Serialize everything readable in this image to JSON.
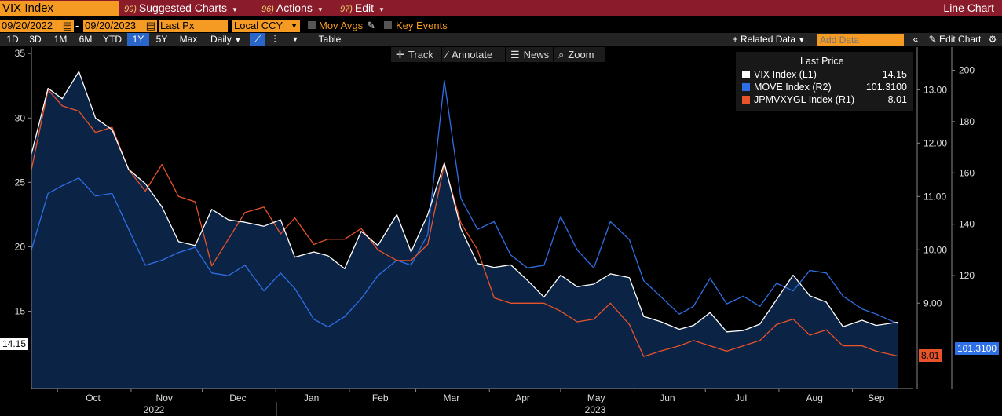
{
  "header": {
    "ticker": "VIX Index",
    "menus": [
      {
        "num": "99)",
        "label": "Suggested Charts"
      },
      {
        "num": "96)",
        "label": "Actions"
      },
      {
        "num": "97)",
        "label": "Edit"
      }
    ],
    "chart_type_label": "Line Chart"
  },
  "controls": {
    "start_date": "09/20/2022",
    "end_date": "09/20/2023",
    "field": "Last Px",
    "currency": "Local CCY",
    "mov_avgs": "Mov Avgs",
    "key_events": "Key Events",
    "date_separator": "-"
  },
  "range_buttons": [
    "1D",
    "3D",
    "1M",
    "6M",
    "YTD",
    "1Y",
    "5Y",
    "Max"
  ],
  "selected_range": "1Y",
  "periodicity": "Daily",
  "table_label": "Table",
  "related_data_label": "Related Data",
  "add_data_placeholder": "Add Data",
  "edit_chart_label": "Edit Chart",
  "tools": [
    "Track",
    "Annotate",
    "News",
    "Zoom"
  ],
  "legend": {
    "header": "Last Price",
    "items": [
      {
        "name": "VIX Index  (L1)",
        "value": "14.15",
        "color": "#ffffff"
      },
      {
        "name": "MOVE Index  (R2)",
        "value": "101.3100",
        "color": "#2e6fe6"
      },
      {
        "name": "JPMVXYGL Index  (R1)",
        "value": "8.01",
        "color": "#e8532a"
      }
    ]
  },
  "last_value_tags": {
    "left": "14.15",
    "move": "101.3100",
    "jpm": "8.01"
  },
  "chart_data": {
    "type": "line",
    "title": "",
    "x_axis": {
      "months": [
        "Oct",
        "Nov",
        "Dec",
        "Jan",
        "Feb",
        "Mar",
        "Apr",
        "May",
        "Jun",
        "Jul",
        "Aug",
        "Sep"
      ],
      "years": [
        "2022",
        "2023"
      ]
    },
    "y_axis_left": {
      "range": [
        9,
        35.5
      ],
      "ticks": [
        "15",
        "20",
        "25",
        "30",
        "35"
      ]
    },
    "y_axis_r1": {
      "range": [
        7.4,
        13.8
      ],
      "ticks": [
        "9.00",
        "10.00",
        "11.00",
        "12.00",
        "13.00"
      ]
    },
    "y_axis_r2": {
      "range": [
        76,
        209
      ],
      "ticks": [
        "120",
        "140",
        "160",
        "180",
        "200"
      ]
    },
    "series": [
      {
        "name": "VIX Index  (L1)",
        "axis": "left",
        "color": "#ffffff",
        "fill": "#0b2345",
        "x": [
          "2022-09-20",
          "2022-09-27",
          "2022-10-03",
          "2022-10-10",
          "2022-10-17",
          "2022-10-24",
          "2022-10-31",
          "2022-11-07",
          "2022-11-14",
          "2022-11-21",
          "2022-11-28",
          "2022-12-05",
          "2022-12-12",
          "2022-12-19",
          "2022-12-27",
          "2023-01-03",
          "2023-01-09",
          "2023-01-17",
          "2023-01-23",
          "2023-01-30",
          "2023-02-06",
          "2023-02-13",
          "2023-02-21",
          "2023-02-27",
          "2023-03-06",
          "2023-03-13",
          "2023-03-20",
          "2023-03-27",
          "2023-04-03",
          "2023-04-10",
          "2023-04-17",
          "2023-04-24",
          "2023-05-01",
          "2023-05-08",
          "2023-05-15",
          "2023-05-22",
          "2023-05-30",
          "2023-06-05",
          "2023-06-12",
          "2023-06-20",
          "2023-06-26",
          "2023-07-03",
          "2023-07-10",
          "2023-07-17",
          "2023-07-24",
          "2023-07-31",
          "2023-08-07",
          "2023-08-14",
          "2023-08-21",
          "2023-08-28",
          "2023-09-05",
          "2023-09-11",
          "2023-09-20"
        ],
        "values": [
          27.2,
          32.3,
          31.5,
          33.6,
          30.0,
          29.1,
          26.0,
          24.9,
          23.1,
          20.4,
          20.1,
          22.9,
          22.1,
          21.9,
          21.6,
          22.1,
          19.2,
          19.6,
          19.3,
          18.3,
          21.2,
          20.1,
          22.5,
          19.6,
          22.5,
          26.5,
          21.4,
          18.7,
          18.4,
          18.6,
          17.4,
          16.1,
          17.8,
          16.9,
          17.1,
          17.9,
          17.6,
          14.6,
          14.2,
          13.6,
          13.9,
          14.9,
          13.4,
          13.5,
          14.0,
          15.9,
          17.8,
          16.2,
          15.7,
          13.8,
          14.3,
          13.9,
          14.15
        ]
      },
      {
        "name": "MOVE Index  (R2)",
        "axis": "right2",
        "color": "#2e6fe6",
        "x": [
          "2022-09-20",
          "2022-09-27",
          "2022-10-03",
          "2022-10-10",
          "2022-10-17",
          "2022-10-24",
          "2022-10-31",
          "2022-11-07",
          "2022-11-14",
          "2022-11-21",
          "2022-11-28",
          "2022-12-05",
          "2022-12-12",
          "2022-12-19",
          "2022-12-27",
          "2023-01-03",
          "2023-01-09",
          "2023-01-17",
          "2023-01-23",
          "2023-01-30",
          "2023-02-06",
          "2023-02-13",
          "2023-02-21",
          "2023-02-27",
          "2023-03-06",
          "2023-03-13",
          "2023-03-20",
          "2023-03-27",
          "2023-04-03",
          "2023-04-10",
          "2023-04-17",
          "2023-04-24",
          "2023-05-01",
          "2023-05-08",
          "2023-05-15",
          "2023-05-22",
          "2023-05-30",
          "2023-06-05",
          "2023-06-12",
          "2023-06-20",
          "2023-06-26",
          "2023-07-03",
          "2023-07-10",
          "2023-07-17",
          "2023-07-24",
          "2023-07-31",
          "2023-08-07",
          "2023-08-14",
          "2023-08-21",
          "2023-08-28",
          "2023-09-05",
          "2023-09-11",
          "2023-09-20"
        ],
        "values": [
          130,
          152,
          155,
          158,
          151,
          152,
          138,
          124,
          126,
          129,
          131,
          121,
          120,
          124,
          114,
          121,
          115,
          103,
          100,
          104,
          111,
          120,
          126,
          124,
          136,
          196,
          150,
          138,
          141,
          128,
          123,
          124,
          143,
          130,
          123,
          141,
          134,
          118,
          112,
          105,
          108,
          119,
          109,
          112,
          108,
          117,
          114,
          122,
          121,
          112,
          107,
          105,
          101.31
        ]
      },
      {
        "name": "JPMVXYGL Index  (R1)",
        "axis": "right1",
        "color": "#e8532a",
        "x": [
          "2022-09-20",
          "2022-09-27",
          "2022-10-03",
          "2022-10-10",
          "2022-10-17",
          "2022-10-24",
          "2022-10-31",
          "2022-11-07",
          "2022-11-14",
          "2022-11-21",
          "2022-11-28",
          "2022-12-05",
          "2022-12-12",
          "2022-12-19",
          "2022-12-27",
          "2023-01-03",
          "2023-01-09",
          "2023-01-17",
          "2023-01-23",
          "2023-01-30",
          "2023-02-06",
          "2023-02-13",
          "2023-02-21",
          "2023-02-27",
          "2023-03-06",
          "2023-03-13",
          "2023-03-20",
          "2023-03-27",
          "2023-04-03",
          "2023-04-10",
          "2023-04-17",
          "2023-04-24",
          "2023-05-01",
          "2023-05-08",
          "2023-05-15",
          "2023-05-22",
          "2023-05-30",
          "2023-06-05",
          "2023-06-12",
          "2023-06-20",
          "2023-06-26",
          "2023-07-03",
          "2023-07-10",
          "2023-07-17",
          "2023-07-24",
          "2023-07-31",
          "2023-08-07",
          "2023-08-14",
          "2023-08-21",
          "2023-08-28",
          "2023-09-05",
          "2023-09-11",
          "2023-09-20"
        ],
        "values": [
          11.5,
          13.0,
          12.7,
          12.6,
          12.2,
          12.3,
          11.5,
          11.1,
          11.6,
          11.0,
          10.9,
          9.7,
          10.2,
          10.7,
          10.8,
          10.3,
          10.6,
          10.1,
          10.2,
          10.2,
          10.4,
          10.0,
          9.8,
          9.8,
          10.1,
          11.6,
          10.5,
          10.0,
          9.1,
          9.0,
          9.0,
          9.0,
          8.85,
          8.65,
          8.7,
          9.0,
          8.6,
          8.0,
          8.1,
          8.2,
          8.3,
          8.2,
          8.1,
          8.2,
          8.3,
          8.6,
          8.7,
          8.4,
          8.5,
          8.2,
          8.2,
          8.1,
          8.01
        ]
      }
    ]
  }
}
